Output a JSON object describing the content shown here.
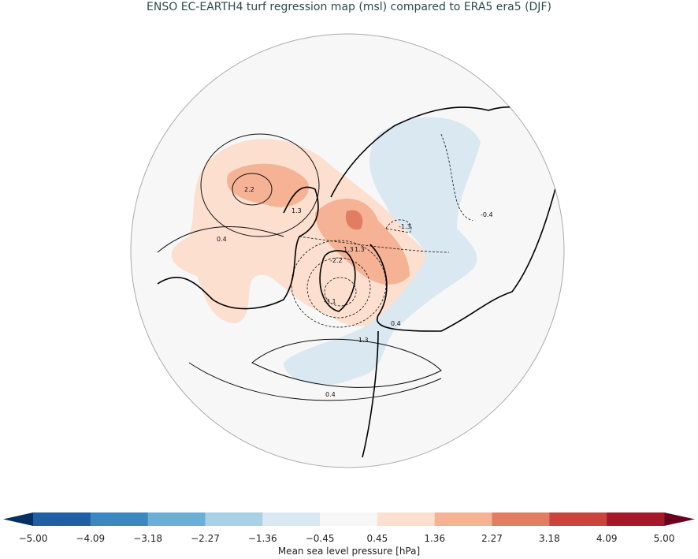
{
  "title": "ENSO EC-EARTH4 turf regression map (msl) compared to ERA5 era5 (DJF)",
  "map": {
    "projection": "north polar stereographic",
    "background_color": "#f7f7f7",
    "contour_labels": [
      "2.2",
      "1.3",
      "0.4",
      "-1.3",
      "1.3",
      "1.3",
      "-2.2",
      "-3.1",
      "-0.4",
      "0.4",
      "-1.3",
      "0.4"
    ]
  },
  "colorbar": {
    "label": "Mean sea level pressure [hPa]",
    "ticks": [
      "−5.00",
      "−4.09",
      "−3.18",
      "−2.27",
      "−1.36",
      "−0.45",
      "0.45",
      "1.36",
      "2.27",
      "3.18",
      "4.09",
      "5.00"
    ],
    "colors": [
      "#1f5fa5",
      "#3a88c0",
      "#6aafd4",
      "#a9d0e5",
      "#d9e8f1",
      "#f7f7f7",
      "#fcdfcf",
      "#f5b294",
      "#e27c63",
      "#c9433f",
      "#a5182a"
    ],
    "under_color": "#053061",
    "over_color": "#67001f",
    "extend": "both"
  }
}
